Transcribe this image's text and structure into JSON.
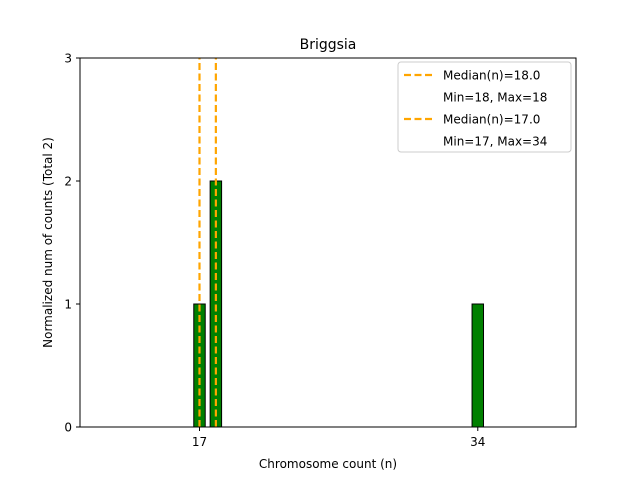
{
  "chart_data": {
    "type": "bar",
    "title": "Briggsia",
    "xlabel": "Chromosome count (n)",
    "ylabel": "Normalized num of counts      (Total 2)",
    "xlim": [
      9.7,
      40.0
    ],
    "ylim": [
      0,
      3
    ],
    "x_ticks": [
      17,
      34
    ],
    "y_ticks": [
      0,
      1,
      2,
      3
    ],
    "bar_width": 0.7,
    "series": [
      {
        "x": [
          17,
          18,
          34
        ],
        "values": [
          1,
          2,
          1
        ],
        "color": "#008000",
        "edge_color": "#000000"
      }
    ],
    "baseline_segment": [
      9.7,
      21.0
    ],
    "median_lines": [
      {
        "x": 18.0,
        "label": "Median(n)=18.0",
        "range_label": "Min=18, Max=18",
        "color": "#FFA500"
      },
      {
        "x": 17.0,
        "label": "Median(n)=17.0",
        "range_label": "Min=17, Max=34",
        "color": "#FFA500"
      }
    ],
    "legend_location": "upper right",
    "grid": false
  }
}
